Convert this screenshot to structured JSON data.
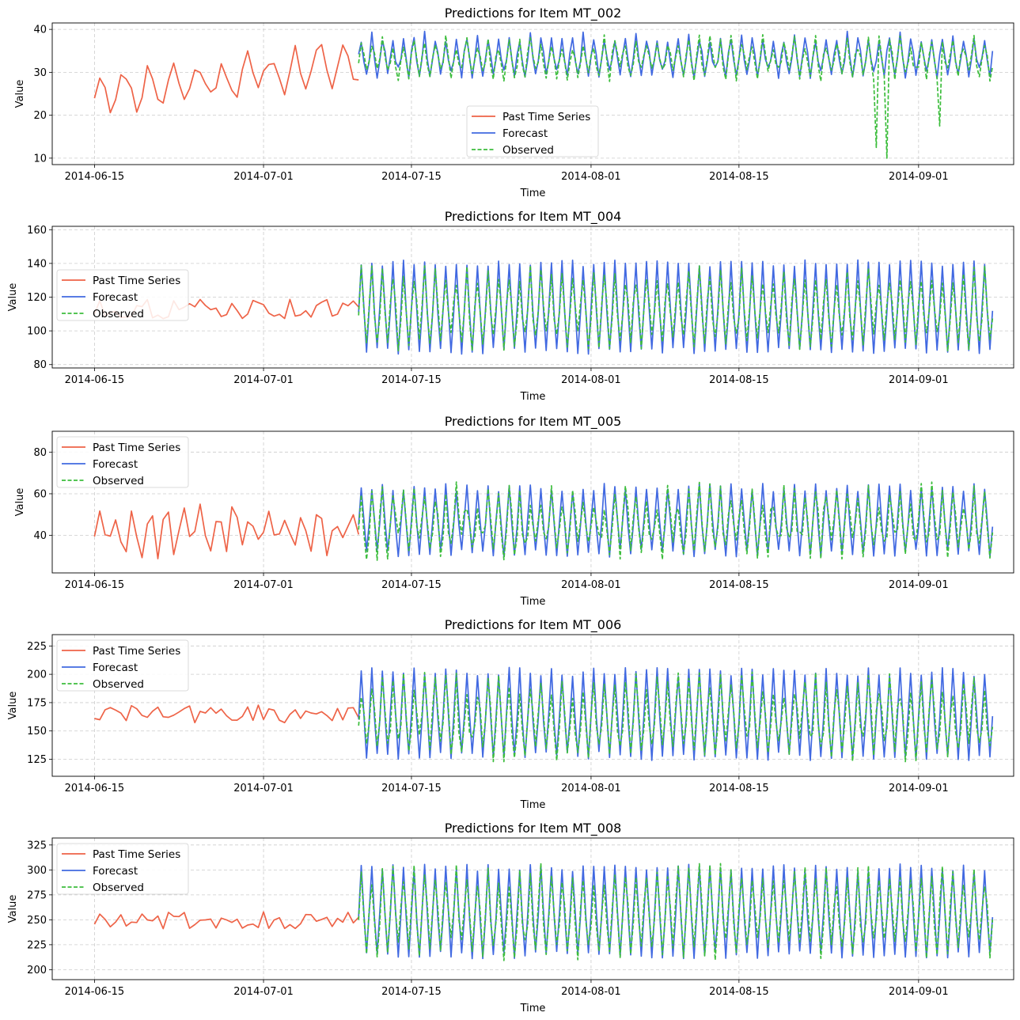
{
  "colors": {
    "past": "#ee6347",
    "forecast": "#4169e1",
    "observed": "#3cbd3c",
    "grid": "#cccccc"
  },
  "legend_labels": [
    "Past Time Series",
    "Forecast",
    "Observed"
  ],
  "chart_data": [
    {
      "type": "line",
      "title": "Predictions for Item MT_002",
      "xlabel": "Time",
      "ylabel": "Value",
      "xlim": [
        "2014-06-11",
        "2014-09-10"
      ],
      "ylim": [
        8.5,
        41.5
      ],
      "yticks": [
        10,
        20,
        30,
        40
      ],
      "xticks": [
        "2014-06-15",
        "2014-07-01",
        "2014-07-15",
        "2014-08-01",
        "2014-08-15",
        "2014-09-01"
      ],
      "grid": true,
      "legend": "center",
      "past": {
        "start": "2014-06-15",
        "end": "2014-07-10",
        "base": 25,
        "trend": 0.28,
        "amp": 4.5,
        "period": 2.3,
        "noise": 2.0
      },
      "forecast": {
        "start": "2014-07-10",
        "end": "2014-09-08",
        "base": 33,
        "amp": 4.5,
        "period": 1.0,
        "spikeEvery": 5,
        "spike": 1.5,
        "noise": 0.6
      },
      "observed": {
        "start": "2014-07-10",
        "end": "2014-09-08",
        "base": 33,
        "amp": 4.0,
        "period": 1.0,
        "noise": 1.8,
        "dips": [
          {
            "date": "2014-08-28",
            "value": 12.5
          },
          {
            "date": "2014-08-29",
            "value": 10
          },
          {
            "date": "2014-09-03",
            "value": 17.5
          }
        ]
      }
    },
    {
      "type": "line",
      "title": "Predictions for Item MT_004",
      "xlabel": "Time",
      "ylabel": "Value",
      "xlim": [
        "2014-06-11",
        "2014-09-10"
      ],
      "ylim": [
        78,
        162
      ],
      "yticks": [
        80,
        100,
        120,
        140,
        160
      ],
      "xticks": [
        "2014-06-15",
        "2014-07-01",
        "2014-07-15",
        "2014-08-01",
        "2014-08-15",
        "2014-09-01"
      ],
      "grid": true,
      "legend": "center-left",
      "past": {
        "start": "2014-06-15",
        "end": "2014-07-10",
        "base": 113,
        "trend": 0,
        "amp": 26,
        "period": 1.0,
        "noise": 6
      },
      "forecast": {
        "start": "2014-07-10",
        "end": "2014-09-08",
        "base": 112,
        "amp": 28,
        "period": 1.0,
        "spikeEvery": 0,
        "spike": 0,
        "noise": 2
      },
      "observed": {
        "start": "2014-07-10",
        "end": "2014-09-08",
        "base": 112,
        "amp": 21,
        "period": 1.0,
        "noise": 6,
        "dips": []
      }
    },
    {
      "type": "line",
      "title": "Predictions for Item MT_005",
      "xlabel": "Time",
      "ylabel": "Value",
      "xlim": [
        "2014-06-11",
        "2014-09-10"
      ],
      "ylim": [
        22,
        90
      ],
      "yticks": [
        40,
        60,
        80
      ],
      "xticks": [
        "2014-06-15",
        "2014-07-01",
        "2014-07-15",
        "2014-08-01",
        "2014-08-15",
        "2014-09-01"
      ],
      "grid": true,
      "legend": "upper-left",
      "past": {
        "start": "2014-06-15",
        "end": "2014-07-10",
        "base": 42,
        "trend": 0,
        "amp": 10,
        "period": 1.6,
        "noise": 5
      },
      "forecast": {
        "start": "2014-07-10",
        "end": "2014-09-08",
        "base": 46,
        "amp": 17,
        "period": 1.0,
        "spikeEvery": 0,
        "spike": 0,
        "noise": 2
      },
      "observed": {
        "start": "2014-07-10",
        "end": "2014-09-08",
        "base": 46,
        "amp": 13,
        "period": 1.0,
        "noise": 7,
        "dips": []
      }
    },
    {
      "type": "line",
      "title": "Predictions for Item MT_006",
      "xlabel": "Time",
      "ylabel": "Value",
      "xlim": [
        "2014-06-11",
        "2014-09-10"
      ],
      "ylim": [
        110,
        235
      ],
      "yticks": [
        125,
        150,
        175,
        200,
        225
      ],
      "xticks": [
        "2014-06-15",
        "2014-07-01",
        "2014-07-15",
        "2014-08-01",
        "2014-08-15",
        "2014-09-01"
      ],
      "grid": true,
      "legend": "upper-left",
      "past": {
        "start": "2014-06-15",
        "end": "2014-07-10",
        "base": 165,
        "trend": 0,
        "amp": 33,
        "period": 1.0,
        "noise": 8
      },
      "forecast": {
        "start": "2014-07-10",
        "end": "2014-09-08",
        "base": 162,
        "amp": 40,
        "period": 1.0,
        "spikeEvery": 0,
        "spike": 0,
        "noise": 4
      },
      "observed": {
        "start": "2014-07-10",
        "end": "2014-09-08",
        "base": 160,
        "amp": 30,
        "period": 1.0,
        "noise": 12,
        "dips": []
      }
    },
    {
      "type": "line",
      "title": "Predictions for Item MT_008",
      "xlabel": "Time",
      "ylabel": "Value",
      "xlim": [
        "2014-06-11",
        "2014-09-10"
      ],
      "ylim": [
        190,
        332
      ],
      "yticks": [
        200,
        225,
        250,
        275,
        300,
        325
      ],
      "xticks": [
        "2014-06-15",
        "2014-07-01",
        "2014-07-15",
        "2014-08-01",
        "2014-08-15",
        "2014-09-01"
      ],
      "grid": true,
      "legend": "upper-left",
      "past": {
        "start": "2014-06-15",
        "end": "2014-07-10",
        "base": 250,
        "trend": 0,
        "amp": 35,
        "period": 1.0,
        "noise": 9
      },
      "forecast": {
        "start": "2014-07-10",
        "end": "2014-09-08",
        "base": 255,
        "amp": 47,
        "period": 1.0,
        "spikeEvery": 0,
        "spike": 0,
        "noise": 4
      },
      "observed": {
        "start": "2014-07-10",
        "end": "2014-09-08",
        "base": 255,
        "amp": 40,
        "period": 1.0,
        "noise": 12,
        "dips": []
      }
    }
  ]
}
